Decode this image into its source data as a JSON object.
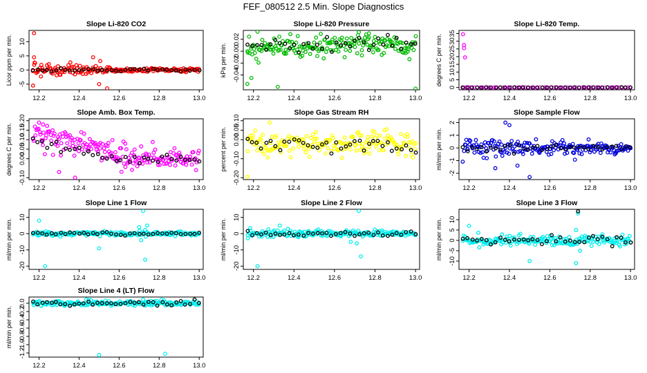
{
  "figure": {
    "title": "FEF_080512  2.5 Min. Slope Diagnostics"
  },
  "chart_data": [
    {
      "type": "scatter",
      "title": "Slope Li-820 CO2",
      "xlabel": "",
      "ylabel": "Licor ppm per min.",
      "xlim": [
        12.15,
        13.02
      ],
      "ylim": [
        -7,
        14
      ],
      "xticks": [
        "12.2",
        "12.4",
        "12.6",
        "12.8",
        "13.0"
      ],
      "yticks": [
        "-5",
        "0",
        "5",
        "10"
      ],
      "grid": false,
      "series": [
        {
          "color": "#ff0000",
          "density": 200,
          "noise": 1.2,
          "noiseEnd": 0.3,
          "decayTo": 12.56,
          "outliers": [
            [
              12.175,
              13
            ],
            [
              12.175,
              4.5
            ],
            [
              12.17,
              -5.5
            ],
            [
              12.18,
              2.5
            ],
            [
              12.47,
              4.5
            ],
            [
              12.54,
              -6.5
            ],
            [
              12.5,
              -5
            ]
          ]
        },
        {
          "color": "#000000",
          "density": 37,
          "noise": 0.3,
          "noiseEnd": 0.2
        }
      ]
    },
    {
      "type": "scatter",
      "title": "Slope Li-820 Pressure",
      "xlabel": "",
      "ylabel": "kPa per min.",
      "xlim": [
        12.15,
        13.02
      ],
      "ylim": [
        -0.065,
        0.035
      ],
      "xticks": [
        "12.2",
        "12.4",
        "12.6",
        "12.8",
        "13.0"
      ],
      "yticks": [
        "-0.04",
        "-0.02",
        "0.00",
        "0.02"
      ],
      "grid": false,
      "series": [
        {
          "color": "#00bb00",
          "density": 200,
          "noise": 0.009,
          "noiseEnd": 0.009,
          "center": 0.009,
          "outliers": [
            [
              12.17,
              -0.055
            ],
            [
              12.32,
              -0.06
            ],
            [
              12.19,
              -0.045
            ],
            [
              13.0,
              -0.063
            ],
            [
              12.77,
              0.03
            ],
            [
              12.72,
              0.032
            ]
          ]
        },
        {
          "color": "#000000",
          "density": 37,
          "noise": 0.006,
          "noiseEnd": 0.006,
          "center": 0.012
        }
      ]
    },
    {
      "type": "scatter",
      "title": "Slope Li-820 Temp.",
      "xlabel": "",
      "ylabel": "degrees C per min.",
      "xlim": [
        12.15,
        13.02
      ],
      "ylim": [
        -1.5,
        37
      ],
      "xticks": [
        "12.2",
        "12.4",
        "12.6",
        "12.8",
        "13.0"
      ],
      "yticks": [
        "0",
        "5",
        "10",
        "15",
        "20",
        "25",
        "30",
        "35"
      ],
      "grid": false,
      "series": [
        {
          "color": "#ff00ff",
          "density": 60,
          "noise": 0.05,
          "noiseEnd": 0.05,
          "outliers": [
            [
              12.17,
              34.5
            ],
            [
              12.175,
              27.5
            ],
            [
              12.175,
              25.5
            ],
            [
              12.18,
              19.5
            ]
          ]
        },
        {
          "color": "#000000",
          "density": 37,
          "noise": 0.05,
          "noiseEnd": 0.05
        }
      ]
    },
    {
      "type": "scatter",
      "title": "Slope Amb. Box Temp.",
      "xlabel": "",
      "ylabel": "degrees C per min.",
      "xlim": [
        12.15,
        13.02
      ],
      "ylim": [
        -0.11,
        0.21
      ],
      "xticks": [
        "12.2",
        "12.4",
        "12.6",
        "12.8",
        "13.0"
      ],
      "yticks": [
        "-0.10",
        "0.00",
        "0.05",
        "0.10",
        "0.15",
        "0.20"
      ],
      "grid": false,
      "series": [
        {
          "color": "#ff00ff",
          "density": 200,
          "noise": 0.035,
          "noiseEnd": 0.025,
          "trendStart": 0.13,
          "trendEnd": 0.0,
          "outliers": [
            [
              12.2,
              0.19
            ],
            [
              12.22,
              0.18
            ],
            [
              12.3,
              -0.07
            ],
            [
              12.38,
              -0.1
            ]
          ]
        },
        {
          "color": "#000000",
          "density": 37,
          "noise": 0.02,
          "noiseEnd": 0.015,
          "trendStart": 0.1,
          "trendEnd": -0.01
        }
      ]
    },
    {
      "type": "scatter",
      "title": "Slope Gas Stream RH",
      "xlabel": "",
      "ylabel": "percent per min.",
      "xlim": [
        12.15,
        13.02
      ],
      "ylim": [
        -0.21,
        0.11
      ],
      "xticks": [
        "12.2",
        "12.4",
        "12.6",
        "12.8",
        "13.0"
      ],
      "yticks": [
        "-0.20",
        "-0.10",
        "0.00",
        "0.05",
        "0.10"
      ],
      "grid": false,
      "series": [
        {
          "color": "#ffff00",
          "density": 200,
          "noise": 0.03,
          "noiseEnd": 0.03,
          "center": -0.02,
          "outliers": [
            [
              12.17,
              -0.195
            ],
            [
              12.28,
              0.09
            ]
          ]
        },
        {
          "color": "#000000",
          "density": 37,
          "noise": 0.025,
          "noiseEnd": 0.025,
          "center": -0.02
        }
      ]
    },
    {
      "type": "scatter",
      "title": "Slope Sample Flow",
      "xlabel": "",
      "ylabel": "ml/min per min.",
      "xlim": [
        12.15,
        13.02
      ],
      "ylim": [
        -2.5,
        2.3
      ],
      "xticks": [
        "12.2",
        "12.4",
        "12.6",
        "12.8",
        "13.0"
      ],
      "yticks": [
        "-2",
        "-1",
        "0",
        "1",
        "2"
      ],
      "grid": false,
      "series": [
        {
          "color": "#0000dd",
          "density": 200,
          "noise": 0.35,
          "noiseEnd": 0.2,
          "outliers": [
            [
              12.38,
              2.0
            ],
            [
              12.4,
              1.8
            ],
            [
              12.5,
              -2.3
            ],
            [
              12.33,
              -1.6
            ],
            [
              12.44,
              -1.4
            ]
          ]
        },
        {
          "color": "#000000",
          "density": 37,
          "noise": 0.15,
          "noiseEnd": 0.12
        }
      ]
    },
    {
      "type": "scatter",
      "title": "Slope Line 1 Flow",
      "xlabel": "",
      "ylabel": "ml/min per min.",
      "xlim": [
        12.15,
        13.02
      ],
      "ylim": [
        -22,
        15
      ],
      "xticks": [
        "12.2",
        "12.4",
        "12.6",
        "12.8",
        "13.0"
      ],
      "yticks": [
        "-20",
        "-10",
        "0",
        "10"
      ],
      "grid": false,
      "series": [
        {
          "color": "#00eeee",
          "density": 200,
          "noise": 0.6,
          "noiseEnd": 0.6,
          "outliers": [
            [
              12.2,
              8
            ],
            [
              12.23,
              -20
            ],
            [
              12.5,
              -9
            ],
            [
              12.72,
              14
            ],
            [
              12.73,
              -16
            ],
            [
              12.7,
              4
            ],
            [
              12.74,
              5
            ],
            [
              12.71,
              -4
            ]
          ]
        },
        {
          "color": "#000000",
          "density": 37,
          "noise": 0.4,
          "noiseEnd": 0.4
        }
      ]
    },
    {
      "type": "scatter",
      "title": "Slope Line 2 Flow",
      "xlabel": "",
      "ylabel": "ml/min per min.",
      "xlim": [
        12.15,
        13.02
      ],
      "ylim": [
        -22,
        15
      ],
      "xticks": [
        "12.2",
        "12.4",
        "12.6",
        "12.8",
        "13.0"
      ],
      "yticks": [
        "-20",
        "-10",
        "0",
        "10"
      ],
      "grid": false,
      "series": [
        {
          "color": "#00eeee",
          "density": 200,
          "noise": 1.0,
          "noiseEnd": 1.0,
          "outliers": [
            [
              12.22,
              -20
            ],
            [
              12.72,
              14
            ],
            [
              12.73,
              -14
            ],
            [
              12.71,
              -6
            ],
            [
              12.68,
              -5
            ],
            [
              12.33,
              5
            ]
          ]
        },
        {
          "color": "#000000",
          "density": 37,
          "noise": 0.8,
          "noiseEnd": 0.8
        }
      ]
    },
    {
      "type": "scatter",
      "title": "Slope Line 3 Flow",
      "xlabel": "",
      "ylabel": "ml/min per min.",
      "xlim": [
        12.15,
        13.02
      ],
      "ylim": [
        -14,
        15
      ],
      "xticks": [
        "12.2",
        "12.4",
        "12.6",
        "12.8",
        "13.0"
      ],
      "yticks": [
        "-10",
        "-5",
        "0",
        "5",
        "10"
      ],
      "grid": false,
      "series": [
        {
          "color": "#00eeee",
          "density": 200,
          "noise": 1.2,
          "noiseEnd": 1.2,
          "outliers": [
            [
              12.2,
              7
            ],
            [
              12.5,
              -10
            ],
            [
              12.73,
              5
            ],
            [
              12.74,
              13
            ],
            [
              12.73,
              -11
            ],
            [
              12.75,
              -5
            ]
          ]
        },
        {
          "color": "#000000",
          "density": 37,
          "noise": 1.0,
          "noiseEnd": 1.0,
          "outliers": [
            [
              12.74,
              14
            ]
          ]
        }
      ]
    },
    {
      "type": "scatter",
      "title": "Slope Line 4 (LT) Flow",
      "xlabel": "",
      "ylabel": "ml/min per min.",
      "xlim": [
        12.15,
        13.02
      ],
      "ylim": [
        -1.3,
        0.15
      ],
      "xticks": [
        "12.2",
        "12.4",
        "12.6",
        "12.8",
        "13.0"
      ],
      "yticks": [
        "-1.2",
        "-1.0",
        "-0.8",
        "-0.6",
        "-0.4",
        "-0.2",
        "0.0"
      ],
      "grid": false,
      "series": [
        {
          "color": "#00eeee",
          "density": 200,
          "noise": 0.03,
          "noiseEnd": 0.03,
          "outliers": [
            [
              12.5,
              -1.25
            ],
            [
              12.83,
              -1.22
            ],
            [
              12.72,
              0.09
            ],
            [
              12.73,
              -0.06
            ]
          ]
        },
        {
          "color": "#000000",
          "density": 37,
          "noise": 0.03,
          "noiseEnd": 0.03
        }
      ]
    }
  ]
}
